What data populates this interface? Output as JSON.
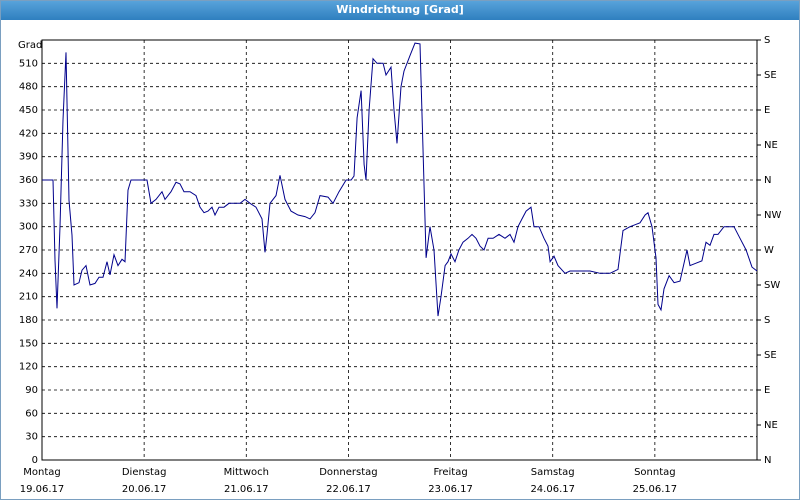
{
  "chart_data": {
    "type": "line",
    "title": "Windrichtung [Grad]",
    "y_label": "Grad",
    "xlim": [
      0,
      7
    ],
    "ylim": [
      0,
      540
    ],
    "y2lim": [
      0,
      540
    ],
    "xticks": [
      {
        "value": 0,
        "label": "Montag"
      },
      {
        "value": 1,
        "label": "Dienstag"
      },
      {
        "value": 2,
        "label": "Mittwoch"
      },
      {
        "value": 3,
        "label": "Donnerstag"
      },
      {
        "value": 4,
        "label": "Freitag"
      },
      {
        "value": 5,
        "label": "Samstag"
      },
      {
        "value": 6,
        "label": "Sonntag"
      }
    ],
    "xtick_dates": [
      "19.06.17",
      "20.06.17",
      "21.06.17",
      "22.06.17",
      "23.06.17",
      "24.06.17",
      "25.06.17"
    ],
    "yticks": [
      0,
      30,
      60,
      90,
      120,
      150,
      180,
      210,
      240,
      270,
      300,
      330,
      360,
      390,
      420,
      450,
      480,
      510
    ],
    "y2ticks": [
      {
        "value": 0,
        "label": "N"
      },
      {
        "value": 45,
        "label": "NE"
      },
      {
        "value": 90,
        "label": "E"
      },
      {
        "value": 135,
        "label": "SE"
      },
      {
        "value": 180,
        "label": "S"
      },
      {
        "value": 225,
        "label": "SW"
      },
      {
        "value": 270,
        "label": "W"
      },
      {
        "value": 315,
        "label": "NW"
      },
      {
        "value": 360,
        "label": "N"
      },
      {
        "value": 405,
        "label": "NE"
      },
      {
        "value": 450,
        "label": "E"
      },
      {
        "value": 495,
        "label": "SE"
      },
      {
        "value": 540,
        "label": "S"
      }
    ],
    "grid": true,
    "series": [
      {
        "color": "#00008b",
        "x": [
          0,
          0.108,
          0.127,
          0.147,
          0.176,
          0.206,
          0.235,
          0.264,
          0.294,
          0.313,
          0.362,
          0.392,
          0.431,
          0.47,
          0.519,
          0.558,
          0.597,
          0.636,
          0.666,
          0.705,
          0.744,
          0.783,
          0.813,
          0.842,
          0.871,
          0.93,
          1.028,
          1.067,
          1.116,
          1.175,
          1.204,
          1.263,
          1.312,
          1.351,
          1.39,
          1.449,
          1.508,
          1.547,
          1.586,
          1.625,
          1.664,
          1.694,
          1.733,
          1.782,
          1.831,
          1.88,
          1.939,
          1.987,
          2.036,
          2.095,
          2.154,
          2.183,
          2.203,
          2.232,
          2.291,
          2.33,
          2.379,
          2.438,
          2.506,
          2.575,
          2.624,
          2.673,
          2.722,
          2.8,
          2.849,
          2.908,
          2.977,
          3.026,
          3.055,
          3.085,
          3.124,
          3.153,
          3.172,
          3.202,
          3.241,
          3.28,
          3.339,
          3.368,
          3.417,
          3.446,
          3.476,
          3.515,
          3.544,
          3.603,
          3.652,
          3.701,
          3.73,
          3.76,
          3.799,
          3.838,
          3.877,
          3.906,
          3.946,
          3.975,
          4.004,
          4.043,
          4.082,
          4.122,
          4.171,
          4.21,
          4.249,
          4.288,
          4.327,
          4.367,
          4.416,
          4.474,
          4.533,
          4.582,
          4.621,
          4.66,
          4.699,
          4.739,
          4.787,
          4.817,
          4.866,
          4.915,
          4.954,
          4.974,
          5.013,
          5.052,
          5.12,
          5.169,
          5.267,
          5.365,
          5.463,
          5.561,
          5.639,
          5.688,
          5.757,
          5.855,
          5.904,
          5.933,
          5.972,
          6.011,
          6.031,
          6.06,
          6.09,
          6.139,
          6.188,
          6.246,
          6.315,
          6.344,
          6.403,
          6.461,
          6.501,
          6.54,
          6.579,
          6.618,
          6.677,
          6.716,
          6.775,
          6.834,
          6.893,
          6.951,
          7.0
        ],
        "values": [
          360,
          360,
          257,
          195,
          300,
          437,
          524,
          334,
          289,
          225,
          228,
          244,
          250,
          225,
          227,
          235,
          235,
          255,
          238,
          264,
          250,
          258,
          255,
          347,
          360,
          360,
          360,
          330,
          335,
          345,
          335,
          345,
          357,
          355,
          345,
          345,
          340,
          325,
          318,
          320,
          325,
          315,
          325,
          325,
          330,
          330,
          330,
          335,
          330,
          325,
          310,
          267,
          290,
          330,
          340,
          366,
          335,
          320,
          315,
          313,
          310,
          318,
          340,
          338,
          330,
          345,
          360,
          360,
          365,
          440,
          475,
          380,
          360,
          450,
          516,
          510,
          510,
          495,
          505,
          450,
          407,
          480,
          500,
          520,
          536,
          535,
          400,
          260,
          300,
          270,
          185,
          210,
          250,
          255,
          265,
          255,
          270,
          280,
          285,
          290,
          285,
          275,
          270,
          285,
          285,
          290,
          285,
          290,
          280,
          300,
          310,
          320,
          325,
          300,
          300,
          285,
          275,
          255,
          262,
          250,
          240,
          243,
          243,
          243,
          240,
          240,
          245,
          295,
          300,
          305,
          315,
          318,
          300,
          260,
          200,
          193,
          220,
          237,
          228,
          230,
          270,
          250,
          253,
          256,
          280,
          276,
          290,
          290,
          300,
          300,
          300,
          285,
          270,
          248,
          243
        ]
      }
    ]
  }
}
